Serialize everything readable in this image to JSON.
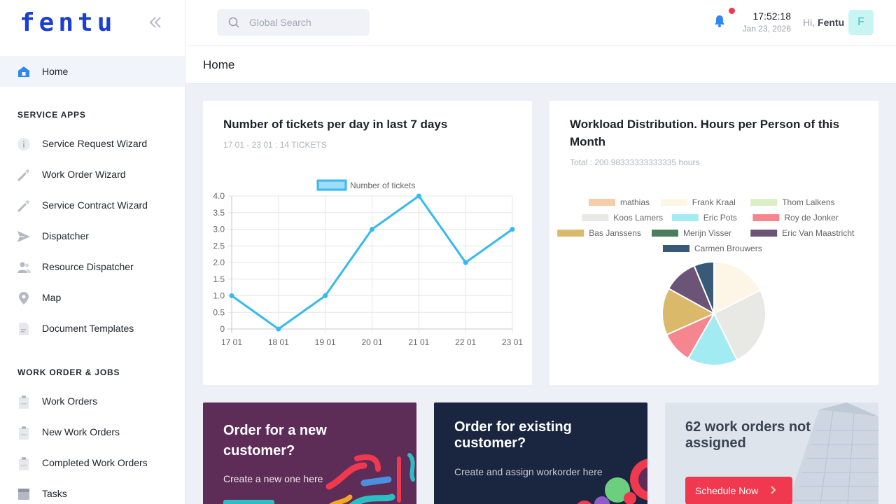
{
  "app": {
    "logo_text": "fentu"
  },
  "sidebar": {
    "home_label": "Home",
    "service_apps_title": "SERVICE APPS",
    "service_apps": [
      {
        "label": "Service Request Wizard",
        "icon": "info-icon"
      },
      {
        "label": "Work Order Wizard",
        "icon": "wrench-icon"
      },
      {
        "label": "Service Contract Wizard",
        "icon": "wrench-icon"
      },
      {
        "label": "Dispatcher",
        "icon": "send-icon"
      },
      {
        "label": "Resource Dispatcher",
        "icon": "people-icon"
      },
      {
        "label": "Map",
        "icon": "map-pin-icon"
      },
      {
        "label": "Document Templates",
        "icon": "document-icon"
      }
    ],
    "work_orders_title": "WORK ORDER & JOBS",
    "work_orders": [
      {
        "label": "Work Orders",
        "icon": "clipboard-icon"
      },
      {
        "label": "New Work Orders",
        "icon": "clipboard-icon"
      },
      {
        "label": "Completed Work Orders",
        "icon": "clipboard-icon"
      },
      {
        "label": "Tasks",
        "icon": "tasks-icon"
      }
    ]
  },
  "topbar": {
    "search_placeholder": "Global Search",
    "time": "17:52:18",
    "date": "Jan 23, 2026",
    "greeting": "Hi,",
    "user_name": "Fentu",
    "avatar_letter": "F"
  },
  "page": {
    "title": "Home"
  },
  "tickets_card": {
    "title": "Number of tickets per day in last 7 days",
    "subtitle": "17 01 - 23 01 : 14 TICKETS"
  },
  "workload_card": {
    "title_line1": "Workload Distribution. Hours per Person of this",
    "title_line2": "Month",
    "subtitle": "Total : 200.98333333333335 hours"
  },
  "promos": {
    "new_customer": {
      "title_line1": "Order for a new",
      "title_line2": "customer?",
      "subtitle": "Create a new one here"
    },
    "existing_customer": {
      "title_line1": "Order for existing",
      "title_line2": "customer?",
      "subtitle": "Create and assign workorder here"
    },
    "unassigned": {
      "title_line1": "62 work orders not",
      "title_line2": "assigned",
      "button_label": "Schedule Now"
    }
  },
  "colors": {
    "accent_blue": "#1b3fd1",
    "line_blue": "#36b9f0",
    "danger": "#f0384f",
    "teal": "#35c4c0"
  },
  "chart_data": [
    {
      "type": "line",
      "title": "Number of tickets per day in last 7 days",
      "categories": [
        "17 01",
        "18 01",
        "19 01",
        "20 01",
        "21 01",
        "22 01",
        "23 01"
      ],
      "series": [
        {
          "name": "Number of tickets",
          "values": [
            1,
            0,
            1,
            3,
            4,
            2,
            3
          ],
          "color": "#36b9f0"
        }
      ],
      "ylim": [
        0,
        4
      ],
      "yticks": [
        "0",
        "0.5",
        "1.0",
        "1.5",
        "2.0",
        "2.5",
        "3.0",
        "3.5",
        "4.0"
      ],
      "grid": true,
      "legend": "top-center"
    },
    {
      "type": "pie",
      "title": "Workload Distribution. Hours per Person of this Month",
      "legend": "top",
      "slices": [
        {
          "label": "mathias",
          "value": 0,
          "color": "#f6cda9"
        },
        {
          "label": "Frank Kraal",
          "value": 35.2,
          "color": "#fdf5e6"
        },
        {
          "label": "Thom Lalkens",
          "value": 0,
          "color": "#dcefc4"
        },
        {
          "label": "Koos Lamers",
          "value": 50.6,
          "color": "#e8e8e4"
        },
        {
          "label": "Eric Pots",
          "value": 31.4,
          "color": "#a2ebf2"
        },
        {
          "label": "Roy de Jonker",
          "value": 20.1,
          "color": "#f5868f"
        },
        {
          "label": "Bas Janssens",
          "value": 29.6,
          "color": "#dbb96a"
        },
        {
          "label": "Merijn Visser",
          "value": 0,
          "color": "#4b7c5c"
        },
        {
          "label": "Eric Van Maastricht",
          "value": 21.5,
          "color": "#6b5476"
        },
        {
          "label": "Carmen Brouwers",
          "value": 12.6,
          "color": "#385977"
        }
      ]
    }
  ]
}
